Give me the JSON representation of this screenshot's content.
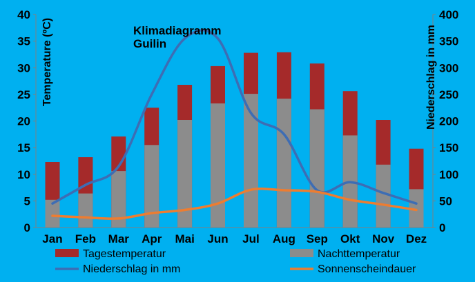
{
  "chart_data": {
    "type": "bar",
    "title_lines": [
      "Klimadiagramm",
      "Guilin"
    ],
    "categories": [
      "Jan",
      "Feb",
      "Mar",
      "Apr",
      "Mai",
      "Jun",
      "Jul",
      "Aug",
      "Sep",
      "Okt",
      "Nov",
      "Dez"
    ],
    "ylabel": "Temperature (ºC)",
    "y2label": "Niederschlag in mm",
    "ylim": [
      0,
      40
    ],
    "y2lim": [
      0,
      400
    ],
    "yticks": [
      "0",
      "5",
      "10",
      "15",
      "20",
      "25",
      "30",
      "35",
      "40"
    ],
    "y2ticks": [
      "0",
      "50",
      "100",
      "150",
      "200",
      "250",
      "300",
      "350",
      "400"
    ],
    "series": [
      {
        "name": "Tagestemperatur",
        "kind": "bar",
        "axis": "left",
        "color": "#a52a2a",
        "values": [
          12.3,
          13.2,
          17.1,
          22.5,
          26.8,
          30.3,
          32.8,
          32.9,
          30.8,
          25.6,
          20.2,
          14.8
        ]
      },
      {
        "name": "Nachttemperatur",
        "kind": "bar",
        "axis": "left",
        "color": "#8c8c8c",
        "values": [
          5.2,
          6.4,
          10.6,
          15.5,
          20.2,
          23.3,
          25.1,
          24.2,
          22.2,
          17.3,
          11.8,
          7.2
        ]
      },
      {
        "name": "Niederschlag in mm",
        "kind": "line",
        "axis": "right",
        "color": "#3d6db4",
        "values": [
          45,
          80,
          115,
          250,
          355,
          355,
          215,
          175,
          70,
          85,
          65,
          45
        ]
      },
      {
        "name": "Sonnenscheindauer",
        "kind": "line",
        "axis": "right",
        "color": "#ed7d31",
        "values": [
          22,
          19,
          17,
          27,
          33,
          45,
          71,
          70,
          67,
          52,
          43,
          33
        ]
      }
    ],
    "legend": "bottom",
    "grid": false
  }
}
